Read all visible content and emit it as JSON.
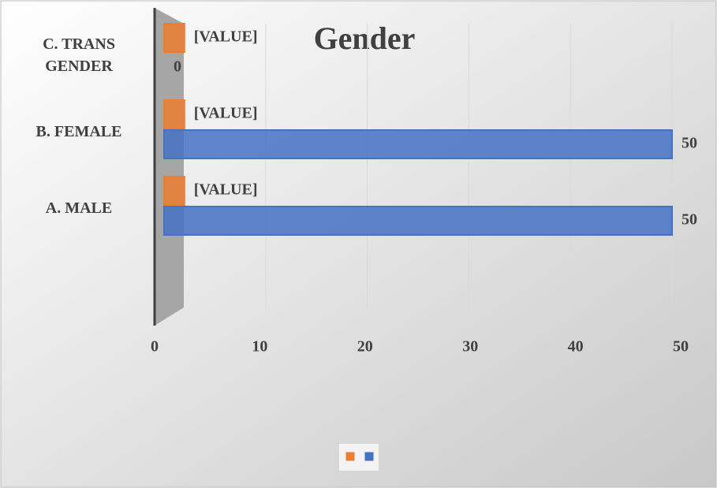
{
  "chart_data": {
    "type": "bar",
    "title": "Gender",
    "categories": [
      "A. MALE",
      "B. FEMALE",
      "C. TRANS GENDER"
    ],
    "series": [
      {
        "color": "#ed7d31",
        "values": [
          2,
          2,
          2
        ],
        "value_labels": [
          "[VALUE]",
          "[VALUE]",
          "[VALUE]"
        ]
      },
      {
        "color": "#4472c4",
        "values": [
          50,
          50,
          0
        ]
      }
    ],
    "xlim": [
      0,
      50
    ],
    "xticks": [
      0,
      10,
      20,
      30,
      40,
      50
    ],
    "grid": true
  }
}
